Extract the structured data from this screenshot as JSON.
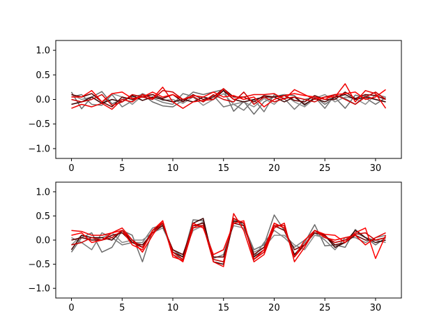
{
  "chart_data": [
    {
      "type": "line",
      "xlabel": "",
      "ylabel": "",
      "xlim": [
        -1.55,
        32.55
      ],
      "ylim": [
        -1.2,
        1.2
      ],
      "xticks": [
        0,
        5,
        10,
        15,
        20,
        25,
        30
      ],
      "xtick_labels": [
        "0",
        "5",
        "10",
        "15",
        "20",
        "25",
        "30"
      ],
      "yticks": [
        -1.0,
        -0.5,
        0.0,
        0.5,
        1.0
      ],
      "ytick_labels": [
        "−1.0",
        "−0.5",
        "0.0",
        "0.5",
        "1.0"
      ],
      "grid": false,
      "x": [
        0,
        1,
        2,
        3,
        4,
        5,
        6,
        7,
        8,
        9,
        10,
        11,
        12,
        13,
        14,
        15,
        16,
        17,
        18,
        19,
        20,
        21,
        22,
        23,
        24,
        25,
        26,
        27,
        28,
        29,
        30,
        31
      ],
      "series": [
        {
          "color": "#6b6b6b",
          "values": [
            0.15,
            -0.19,
            0.05,
            0.16,
            -0.09,
            0.0,
            0.05,
            0.1,
            -0.05,
            -0.13,
            -0.15,
            -0.02,
            0.15,
            0.1,
            0.15,
            0.2,
            -0.24,
            -0.04,
            -0.3,
            -0.05,
            0.06,
            0.1,
            0.08,
            -0.12,
            0.05,
            -0.1,
            0.04,
            -0.18,
            0.09,
            0.03,
            -0.1,
            0.04
          ]
        },
        {
          "color": "#757575",
          "values": [
            0.05,
            0.1,
            -0.1,
            -0.12,
            0.1,
            -0.15,
            -0.03,
            0.12,
            0.03,
            -0.06,
            -0.1,
            0.12,
            0.06,
            -0.05,
            0.08,
            -0.15,
            -0.1,
            -0.22,
            0.0,
            -0.25,
            0.1,
            0.02,
            -0.2,
            0.0,
            0.05,
            -0.18,
            0.1,
            0.02,
            -0.1,
            0.08,
            0.0,
            -0.05
          ]
        },
        {
          "color": "#8a8a8a",
          "values": [
            0.1,
            0.0,
            0.05,
            -0.08,
            0.12,
            0.05,
            -0.1,
            0.08,
            0.1,
            -0.02,
            0.0,
            -0.08,
            0.05,
            -0.12,
            0.0,
            0.12,
            -0.1,
            -0.05,
            -0.15,
            0.02,
            -0.1,
            0.1,
            -0.05,
            -0.15,
            0.02,
            0.1,
            -0.05,
            0.05,
            0.02,
            -0.1,
            0.1,
            0.05
          ]
        },
        {
          "color": "#3a0000",
          "values": [
            -0.1,
            -0.05,
            0.05,
            -0.08,
            0.0,
            -0.05,
            0.08,
            -0.02,
            0.05,
            0.0,
            -0.05,
            0.0,
            -0.05,
            0.05,
            0.0,
            0.18,
            0.0,
            -0.05,
            0.0,
            0.05,
            0.05,
            -0.05,
            0.05,
            -0.1,
            0.02,
            -0.05,
            0.05,
            0.1,
            0.0,
            0.05,
            0.0,
            -0.05
          ]
        },
        {
          "color": "#660000",
          "values": [
            0.1,
            0.05,
            0.12,
            -0.05,
            -0.15,
            0.05,
            0.0,
            0.05,
            0.1,
            0.02,
            0.1,
            -0.05,
            0.1,
            0.0,
            0.05,
            0.22,
            0.05,
            0.05,
            -0.05,
            0.08,
            0.05,
            0.08,
            -0.02,
            -0.05,
            0.08,
            0.0,
            0.0,
            0.15,
            0.02,
            0.1,
            0.08,
            0.0
          ]
        },
        {
          "color": "#ee0000",
          "values": [
            -0.18,
            -0.1,
            -0.15,
            -0.08,
            -0.2,
            0.0,
            -0.05,
            0.1,
            0.02,
            0.25,
            -0.05,
            -0.18,
            -0.05,
            -0.02,
            0.0,
            0.22,
            0.0,
            0.05,
            0.1,
            0.1,
            0.12,
            0.0,
            0.2,
            0.1,
            0.0,
            0.05,
            0.05,
            0.32,
            -0.05,
            0.18,
            0.12,
            -0.18
          ]
        },
        {
          "color": "#ff0000",
          "values": [
            0.05,
            0.05,
            0.18,
            -0.05,
            0.12,
            0.15,
            0.02,
            0.05,
            0.15,
            0.05,
            0.1,
            0.0,
            0.08,
            0.05,
            0.15,
            0.05,
            0.08,
            0.0,
            0.05,
            -0.15,
            0.0,
            0.08,
            0.12,
            0.08,
            0.05,
            0.0,
            0.1,
            0.12,
            0.15,
            0.0,
            0.05,
            0.2
          ]
        },
        {
          "color": "#cc0000",
          "values": [
            0.0,
            -0.05,
            0.0,
            0.1,
            -0.12,
            -0.05,
            0.1,
            0.05,
            0.0,
            0.18,
            0.15,
            0.0,
            0.05,
            -0.05,
            0.1,
            0.0,
            -0.05,
            0.15,
            -0.1,
            0.05,
            -0.05,
            0.02,
            0.05,
            0.0,
            -0.05,
            0.05,
            0.1,
            0.0,
            -0.1,
            0.05,
            0.15,
            0.0
          ]
        }
      ]
    },
    {
      "type": "line",
      "xlabel": "",
      "ylabel": "",
      "xlim": [
        -1.55,
        32.55
      ],
      "ylim": [
        -1.2,
        1.2
      ],
      "xticks": [
        0,
        5,
        10,
        15,
        20,
        25,
        30
      ],
      "xtick_labels": [
        "0",
        "5",
        "10",
        "15",
        "20",
        "25",
        "30"
      ],
      "yticks": [
        -1.0,
        -0.5,
        0.0,
        0.5,
        1.0
      ],
      "ytick_labels": [
        "−1.0",
        "−0.5",
        "0.0",
        "0.5",
        "1.0"
      ],
      "grid": false,
      "x": [
        0,
        1,
        2,
        3,
        4,
        5,
        6,
        7,
        8,
        9,
        10,
        11,
        12,
        13,
        14,
        15,
        16,
        17,
        18,
        19,
        20,
        21,
        22,
        23,
        24,
        25,
        26,
        27,
        28,
        29,
        30,
        31
      ],
      "series": [
        {
          "color": "#6b6b6b",
          "values": [
            -0.25,
            0.05,
            0.15,
            -0.25,
            -0.15,
            0.2,
            0.1,
            -0.45,
            0.2,
            0.3,
            -0.2,
            -0.35,
            0.42,
            0.4,
            -0.4,
            -0.45,
            0.45,
            0.3,
            -0.2,
            -0.1,
            0.52,
            0.2,
            -0.3,
            -0.05,
            0.32,
            -0.12,
            -0.1,
            -0.15,
            0.22,
            0.05,
            -0.1,
            0.05
          ]
        },
        {
          "color": "#7a7a7a",
          "values": [
            0.05,
            -0.05,
            -0.2,
            0.15,
            0.05,
            -0.1,
            -0.05,
            -0.05,
            0.25,
            0.32,
            -0.3,
            -0.4,
            0.25,
            0.38,
            -0.38,
            -0.3,
            0.38,
            0.35,
            -0.35,
            -0.05,
            0.2,
            0.05,
            -0.15,
            0.0,
            0.15,
            0.0,
            -0.2,
            0.05,
            0.05,
            -0.05,
            0.05,
            0.1
          ]
        },
        {
          "color": "#8a8a8a",
          "values": [
            -0.1,
            0.1,
            0.0,
            0.05,
            0.15,
            -0.05,
            0.0,
            0.0,
            0.15,
            0.25,
            -0.2,
            -0.3,
            0.2,
            0.3,
            -0.3,
            -0.2,
            0.3,
            0.25,
            -0.25,
            -0.15,
            0.1,
            0.1,
            -0.1,
            -0.2,
            0.1,
            0.05,
            -0.05,
            0.0,
            0.15,
            0.05,
            0.0,
            -0.05
          ]
        },
        {
          "color": "#3a0000",
          "values": [
            -0.2,
            0.1,
            0.05,
            0.05,
            0.0,
            0.2,
            -0.05,
            -0.15,
            0.2,
            0.35,
            -0.25,
            -0.35,
            0.35,
            0.45,
            -0.45,
            -0.5,
            0.4,
            0.35,
            -0.35,
            -0.2,
            0.35,
            0.25,
            -0.3,
            -0.1,
            0.2,
            0.1,
            -0.15,
            -0.05,
            0.2,
            0.05,
            -0.05,
            0.0
          ]
        },
        {
          "color": "#660000",
          "values": [
            0.0,
            0.05,
            0.0,
            0.0,
            0.1,
            0.15,
            -0.05,
            -0.1,
            0.15,
            0.3,
            -0.2,
            -0.3,
            0.3,
            0.35,
            -0.35,
            -0.35,
            0.35,
            0.3,
            -0.3,
            -0.15,
            0.3,
            0.2,
            -0.2,
            -0.1,
            0.15,
            0.1,
            -0.1,
            -0.05,
            0.1,
            0.0,
            0.0,
            0.05
          ]
        },
        {
          "color": "#ee0000",
          "values": [
            0.2,
            0.18,
            0.1,
            0.1,
            0.15,
            0.25,
            0.0,
            -0.25,
            0.1,
            0.4,
            -0.3,
            -0.45,
            0.25,
            0.3,
            -0.45,
            -0.55,
            0.55,
            0.2,
            -0.45,
            -0.3,
            0.25,
            0.35,
            -0.45,
            -0.15,
            0.2,
            0.05,
            0.0,
            0.05,
            0.1,
            -0.1,
            0.05,
            0.15
          ]
        },
        {
          "color": "#ff0000",
          "values": [
            0.1,
            0.15,
            -0.05,
            0.0,
            0.15,
            0.2,
            -0.1,
            -0.2,
            0.2,
            0.4,
            -0.35,
            -0.42,
            0.35,
            0.25,
            -0.3,
            -0.2,
            0.35,
            0.4,
            -0.4,
            -0.2,
            0.35,
            0.25,
            -0.35,
            0.0,
            0.2,
            0.12,
            0.1,
            -0.05,
            0.15,
            0.25,
            -0.38,
            0.1
          ]
        },
        {
          "color": "#cc0000",
          "values": [
            -0.1,
            -0.05,
            0.05,
            0.0,
            0.05,
            0.2,
            0.0,
            -0.15,
            0.15,
            0.35,
            -0.25,
            -0.4,
            0.3,
            0.3,
            -0.4,
            -0.45,
            0.45,
            0.35,
            -0.4,
            -0.25,
            0.3,
            0.3,
            -0.35,
            -0.1,
            0.2,
            0.08,
            -0.05,
            0.0,
            0.12,
            0.15,
            0.0,
            0.05
          ]
        }
      ]
    }
  ]
}
